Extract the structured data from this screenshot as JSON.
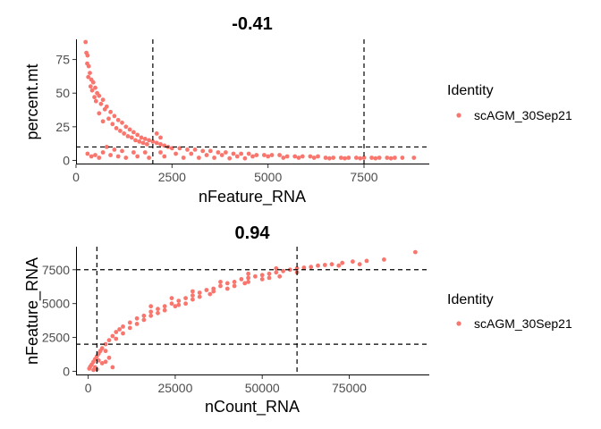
{
  "colors": {
    "point": "#f8766d"
  },
  "chart_data": [
    {
      "type": "scatter",
      "title": "-0.41",
      "xlabel": "nFeature_RNA",
      "ylabel": "percent.mt",
      "xlim": [
        0,
        9200
      ],
      "ylim": [
        -3,
        90
      ],
      "xticks": [
        0,
        2500,
        5000,
        7500
      ],
      "xtick_labels": [
        "0",
        "2500",
        "5000",
        "7500"
      ],
      "yticks": [
        0,
        25,
        50,
        75
      ],
      "ytick_labels": [
        "0",
        "25",
        "50",
        "75"
      ],
      "vlines": [
        2000,
        7500
      ],
      "hlines": [
        10
      ],
      "series": [
        {
          "name": "scAGM_30Sep21",
          "points": [
            [
              250,
              88
            ],
            [
              270,
              80
            ],
            [
              300,
              78
            ],
            [
              290,
              72
            ],
            [
              330,
              70
            ],
            [
              360,
              65
            ],
            [
              320,
              62
            ],
            [
              400,
              60
            ],
            [
              450,
              58
            ],
            [
              380,
              55
            ],
            [
              500,
              54
            ],
            [
              420,
              52
            ],
            [
              550,
              50
            ],
            [
              480,
              47
            ],
            [
              600,
              48
            ],
            [
              520,
              44
            ],
            [
              700,
              45
            ],
            [
              650,
              42
            ],
            [
              800,
              40
            ],
            [
              750,
              38
            ],
            [
              900,
              36
            ],
            [
              600,
              35
            ],
            [
              1000,
              33
            ],
            [
              850,
              31
            ],
            [
              1100,
              30
            ],
            [
              700,
              29
            ],
            [
              1200,
              28
            ],
            [
              950,
              27
            ],
            [
              1300,
              25
            ],
            [
              1050,
              24
            ],
            [
              1400,
              23
            ],
            [
              1150,
              22
            ],
            [
              1500,
              21
            ],
            [
              1250,
              20
            ],
            [
              1600,
              19
            ],
            [
              1350,
              18
            ],
            [
              1700,
              17
            ],
            [
              1450,
              17
            ],
            [
              1800,
              16
            ],
            [
              1550,
              15
            ],
            [
              1900,
              15
            ],
            [
              1650,
              14
            ],
            [
              2000,
              14
            ],
            [
              1750,
              13
            ],
            [
              2100,
              13
            ],
            [
              1850,
              12
            ],
            [
              2200,
              12
            ],
            [
              2300,
              11
            ],
            [
              2100,
              20
            ],
            [
              2200,
              17
            ],
            [
              2400,
              10
            ],
            [
              2500,
              9
            ],
            [
              2700,
              9
            ],
            [
              2900,
              8
            ],
            [
              3100,
              8
            ],
            [
              3300,
              7
            ],
            [
              3500,
              7
            ],
            [
              3700,
              6
            ],
            [
              3900,
              6
            ],
            [
              4100,
              5
            ],
            [
              4300,
              5
            ],
            [
              4500,
              5
            ],
            [
              4700,
              4
            ],
            [
              4900,
              4
            ],
            [
              5100,
              4
            ],
            [
              5300,
              4
            ],
            [
              5500,
              3
            ],
            [
              5700,
              3
            ],
            [
              5900,
              3
            ],
            [
              6100,
              3
            ],
            [
              6300,
              3
            ],
            [
              6500,
              2
            ],
            [
              6700,
              2
            ],
            [
              6900,
              2
            ],
            [
              7100,
              2
            ],
            [
              7300,
              2
            ],
            [
              7500,
              2
            ],
            [
              7700,
              2
            ],
            [
              7900,
              2
            ],
            [
              8100,
              2
            ],
            [
              8300,
              2
            ],
            [
              8500,
              2
            ],
            [
              8800,
              2
            ],
            [
              800,
              10
            ],
            [
              1000,
              8
            ],
            [
              1200,
              7
            ],
            [
              1500,
              6
            ],
            [
              1800,
              6
            ],
            [
              2200,
              6
            ],
            [
              2600,
              5
            ],
            [
              3000,
              5
            ],
            [
              3400,
              4
            ],
            [
              3800,
              4
            ],
            [
              4200,
              3
            ],
            [
              4600,
              3
            ],
            [
              5000,
              3
            ],
            [
              5400,
              2
            ],
            [
              5800,
              2
            ],
            [
              6200,
              2
            ],
            [
              6600,
              1.5
            ],
            [
              7000,
              1.5
            ],
            [
              7400,
              1.5
            ],
            [
              7800,
              1.5
            ],
            [
              8200,
              1.5
            ],
            [
              300,
              5
            ],
            [
              400,
              3
            ],
            [
              500,
              4
            ],
            [
              600,
              2
            ],
            [
              700,
              6
            ],
            [
              900,
              4
            ],
            [
              1100,
              3
            ],
            [
              1300,
              2
            ],
            [
              1600,
              3
            ],
            [
              1900,
              2
            ],
            [
              2300,
              3
            ],
            [
              2800,
              2
            ],
            [
              3200,
              2
            ],
            [
              3600,
              2
            ],
            [
              4000,
              1.5
            ],
            [
              4400,
              1.5
            ]
          ]
        }
      ]
    },
    {
      "type": "scatter",
      "title": "0.94",
      "xlabel": "nCount_RNA",
      "ylabel": "nFeature_RNA",
      "xlim": [
        -3500,
        98000
      ],
      "ylim": [
        -300,
        9200
      ],
      "xticks": [
        0,
        25000,
        50000,
        75000
      ],
      "xtick_labels": [
        "0",
        "25000",
        "50000",
        "75000"
      ],
      "yticks": [
        0,
        2500,
        5000,
        7500
      ],
      "ytick_labels": [
        "0",
        "2500",
        "5000",
        "7500"
      ],
      "vlines": [
        2500,
        60000
      ],
      "hlines": [
        2000,
        7500
      ],
      "series": [
        {
          "name": "scAGM_30Sep21",
          "points": [
            [
              300,
              200
            ],
            [
              600,
              350
            ],
            [
              1000,
              500
            ],
            [
              1500,
              700
            ],
            [
              2000,
              900
            ],
            [
              2500,
              1100
            ],
            [
              3000,
              1300
            ],
            [
              3500,
              1500
            ],
            [
              4000,
              1700
            ],
            [
              5000,
              2000
            ],
            [
              6000,
              2300
            ],
            [
              7000,
              2600
            ],
            [
              8000,
              2900
            ],
            [
              9000,
              3100
            ],
            [
              10000,
              3300
            ],
            [
              12000,
              3600
            ],
            [
              14000,
              3900
            ],
            [
              16000,
              4100
            ],
            [
              18000,
              4400
            ],
            [
              20000,
              4600
            ],
            [
              22000,
              4800
            ],
            [
              24000,
              5000
            ],
            [
              26000,
              5200
            ],
            [
              28000,
              5400
            ],
            [
              30000,
              5600
            ],
            [
              32000,
              5800
            ],
            [
              34000,
              6000
            ],
            [
              36000,
              6100
            ],
            [
              38000,
              6300
            ],
            [
              40000,
              6500
            ],
            [
              42000,
              6600
            ],
            [
              44000,
              6800
            ],
            [
              46000,
              6900
            ],
            [
              48000,
              7000
            ],
            [
              50000,
              7100
            ],
            [
              52000,
              7200
            ],
            [
              54000,
              7300
            ],
            [
              56000,
              7400
            ],
            [
              58000,
              7500
            ],
            [
              60000,
              7600
            ],
            [
              62000,
              7650
            ],
            [
              64000,
              7700
            ],
            [
              66000,
              7800
            ],
            [
              68000,
              7850
            ],
            [
              70000,
              7900
            ],
            [
              73000,
              8000
            ],
            [
              76000,
              8100
            ],
            [
              80000,
              8150
            ],
            [
              85000,
              8250
            ],
            [
              94000,
              8800
            ],
            [
              5000,
              1500
            ],
            [
              8000,
              2400
            ],
            [
              12000,
              3200
            ],
            [
              16000,
              3800
            ],
            [
              20000,
              4300
            ],
            [
              25000,
              4800
            ],
            [
              30000,
              5300
            ],
            [
              35000,
              5700
            ],
            [
              40000,
              6100
            ],
            [
              45000,
              6500
            ],
            [
              50000,
              6800
            ],
            [
              55000,
              7000
            ],
            [
              60000,
              7300
            ],
            [
              2000,
              300
            ],
            [
              4000,
              600
            ],
            [
              6000,
              1000
            ],
            [
              3000,
              800
            ],
            [
              10000,
              2800
            ],
            [
              14000,
              3500
            ],
            [
              18000,
              4100
            ],
            [
              22000,
              4500
            ],
            [
              26000,
              4900
            ],
            [
              28000,
              5000
            ],
            [
              32000,
              5500
            ],
            [
              36000,
              5900
            ],
            [
              42000,
              6300
            ],
            [
              46000,
              6600
            ],
            [
              52000,
              6900
            ],
            [
              1500,
              100
            ],
            [
              2500,
              150
            ],
            [
              5000,
              700
            ],
            [
              7000,
              300
            ],
            [
              18000,
              4800
            ],
            [
              24000,
              5400
            ],
            [
              30000,
              5900
            ],
            [
              38000,
              6600
            ],
            [
              46000,
              7200
            ],
            [
              54000,
              7600
            ],
            [
              72000,
              7800
            ],
            [
              78000,
              7900
            ]
          ]
        }
      ]
    }
  ],
  "legends": [
    {
      "title": "Identity",
      "label": "scAGM_30Sep21"
    },
    {
      "title": "Identity",
      "label": "scAGM_30Sep21"
    }
  ]
}
